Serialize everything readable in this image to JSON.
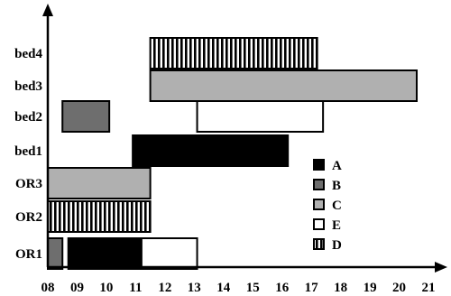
{
  "chart_data": {
    "type": "gantt",
    "title": "",
    "xlabel": "",
    "ylabel": "",
    "x_ticks": [
      "08",
      "09",
      "10",
      "11",
      "12",
      "13",
      "14",
      "15",
      "16",
      "17",
      "18",
      "19",
      "20",
      "21"
    ],
    "xlim": [
      8,
      21
    ],
    "rows": [
      "OR1",
      "OR2",
      "OR3",
      "bed1",
      "bed2",
      "bed3",
      "bed4"
    ],
    "categories": [
      {
        "name": "A",
        "color": "#000000",
        "pattern": "solid"
      },
      {
        "name": "B",
        "color": "#6e6e6e",
        "pattern": "solid"
      },
      {
        "name": "C",
        "color": "#b0b0b0",
        "pattern": "solid"
      },
      {
        "name": "E",
        "color": "#ffffff",
        "pattern": "solid"
      },
      {
        "name": "D",
        "color": "#ffffff",
        "pattern": "vertical-stripes"
      }
    ],
    "bars": [
      {
        "row": "OR1",
        "category": "B",
        "start": 8.0,
        "end": 8.5
      },
      {
        "row": "OR1",
        "category": "A",
        "start": 8.7,
        "end": 11.2
      },
      {
        "row": "OR1",
        "category": "E",
        "start": 11.2,
        "end": 13.1
      },
      {
        "row": "OR2",
        "category": "D",
        "start": 8.0,
        "end": 11.5
      },
      {
        "row": "OR3",
        "category": "C",
        "start": 8.0,
        "end": 11.5
      },
      {
        "row": "bed1",
        "category": "A",
        "start": 10.9,
        "end": 16.2
      },
      {
        "row": "bed2",
        "category": "B",
        "start": 8.5,
        "end": 10.1
      },
      {
        "row": "bed2",
        "category": "E",
        "start": 13.1,
        "end": 17.4
      },
      {
        "row": "bed3",
        "category": "C",
        "start": 11.5,
        "end": 20.6
      },
      {
        "row": "bed4",
        "category": "D",
        "start": 11.5,
        "end": 17.2
      }
    ],
    "legend": {
      "position": "right",
      "entries": [
        "A",
        "B",
        "C",
        "E",
        "D"
      ]
    },
    "grid": false
  }
}
